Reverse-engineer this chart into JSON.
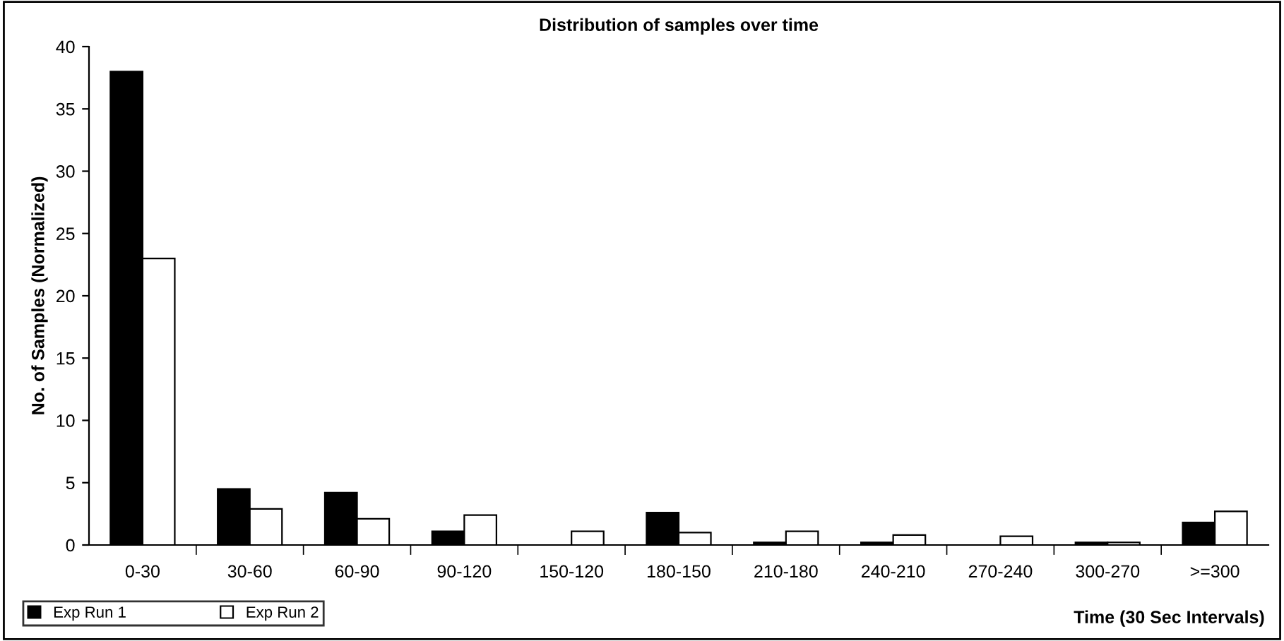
{
  "chart_data": {
    "type": "bar",
    "title": "Distribution of samples over time",
    "xlabel": "Time (30 Sec Intervals)",
    "ylabel": "No. of Samples (Normalized)",
    "categories": [
      "0-30",
      "30-60",
      "60-90",
      "90-120",
      "150-120",
      "180-150",
      "210-180",
      "240-210",
      "270-240",
      "300-270",
      ">=300"
    ],
    "series": [
      {
        "name": "Exp Run 1",
        "color": "#000000",
        "values": [
          38,
          4.5,
          4.2,
          1.1,
          0,
          2.6,
          0.2,
          0.2,
          0,
          0.2,
          1.8
        ]
      },
      {
        "name": "Exp Run 2",
        "color": "#ffffff",
        "values": [
          23,
          2.9,
          2.1,
          2.4,
          1.1,
          1.0,
          1.1,
          0.8,
          0.7,
          0.2,
          2.7
        ]
      }
    ],
    "ylim": [
      0,
      40
    ],
    "yticks": [
      0,
      5,
      10,
      15,
      20,
      25,
      30,
      35,
      40
    ],
    "grid": false,
    "legend": "bottom left"
  }
}
